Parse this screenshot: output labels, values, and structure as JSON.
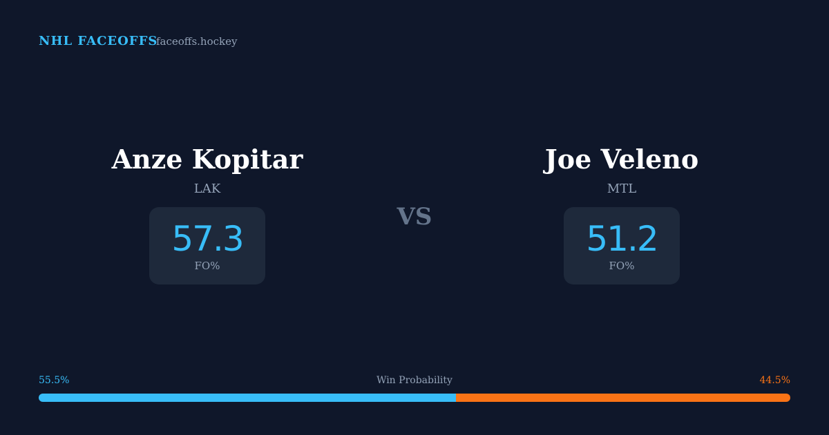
{
  "header": {
    "brand": "NHL FACEOFFS",
    "site": "faceoffs.hockey"
  },
  "players": [
    {
      "name": "Anze Kopitar",
      "team": "LAK",
      "fo_value": 57.3,
      "fo_label": "FO%"
    },
    {
      "name": "Joe Veleno",
      "team": "MTL",
      "fo_value": 51.2,
      "fo_label": "FO%"
    }
  ],
  "vs": "VS",
  "win_probability": {
    "label": "Win Probability",
    "values": [
      55.5,
      44.5
    ],
    "value_labels": [
      "55.5%",
      "44.5%"
    ],
    "colors": [
      "#38bdf8",
      "#f97316"
    ]
  }
}
